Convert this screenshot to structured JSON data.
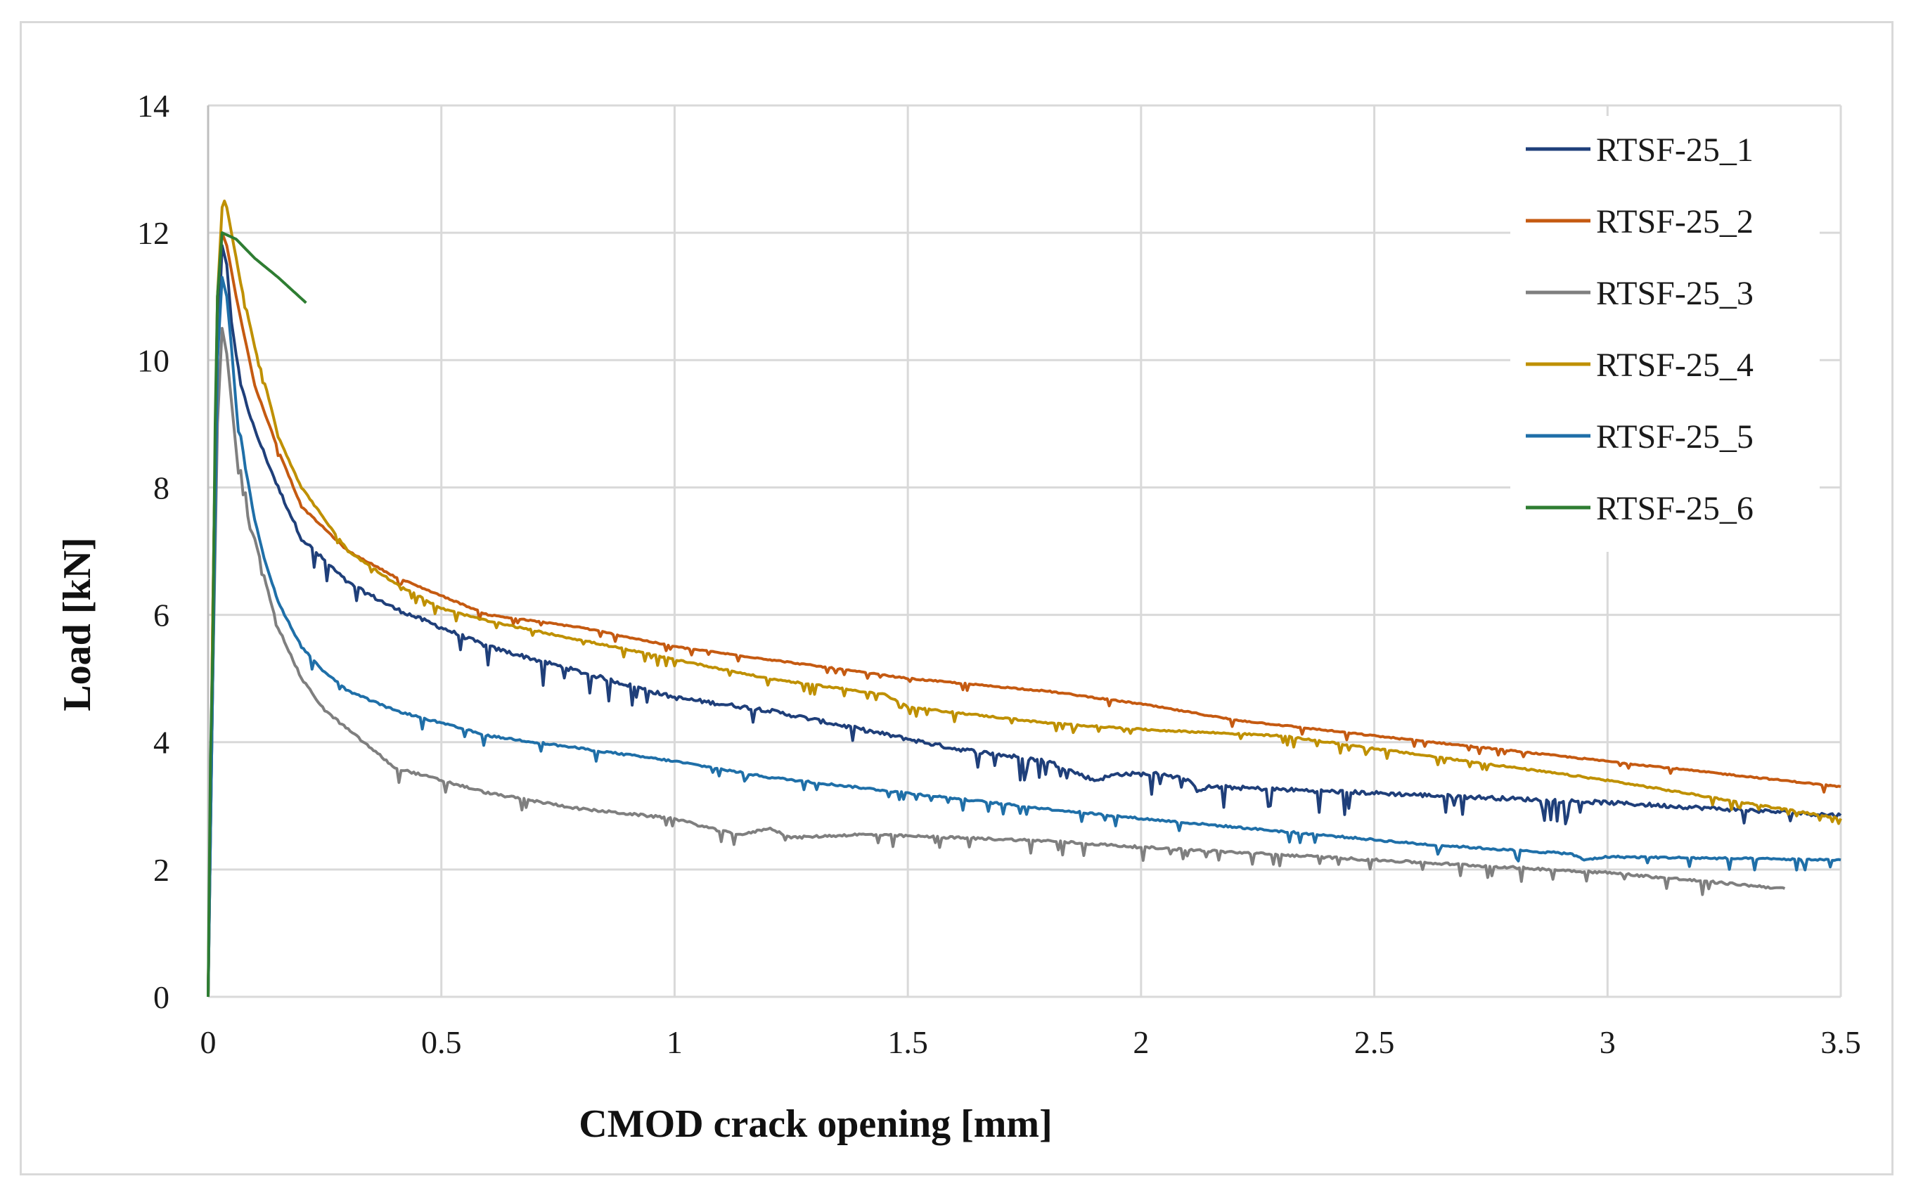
{
  "chart_data": {
    "type": "line",
    "title": "",
    "xlabel": "CMOD crack opening [mm]",
    "ylabel": "Load [kN]",
    "xlim": [
      0,
      3.5
    ],
    "ylim": [
      0,
      14
    ],
    "xticks": [
      0,
      0.5,
      1,
      1.5,
      2,
      2.5,
      3,
      3.5
    ],
    "yticks": [
      0,
      2,
      4,
      6,
      8,
      10,
      12,
      14
    ],
    "xtick_labels": [
      "0",
      "0.5",
      "1",
      "1.5",
      "2",
      "2.5",
      "3",
      "3.5"
    ],
    "ytick_labels": [
      "0",
      "2",
      "4",
      "6",
      "8",
      "10",
      "12",
      "14"
    ],
    "grid": true,
    "legend_position": "top-right",
    "series": [
      {
        "name": "RTSF-25_1",
        "color": "#1f3f7a",
        "noise": 0.25,
        "x": [
          0,
          0.01,
          0.02,
          0.03,
          0.04,
          0.05,
          0.07,
          0.1,
          0.15,
          0.2,
          0.3,
          0.4,
          0.5,
          0.6,
          0.8,
          1.0,
          1.2,
          1.4,
          1.6,
          1.8,
          1.9,
          1.95,
          2.0,
          2.05,
          2.1,
          2.12,
          2.15,
          2.5,
          3.0,
          3.5
        ],
        "y": [
          0,
          5,
          10,
          11.8,
          11.5,
          10.6,
          9.6,
          8.9,
          8.0,
          7.2,
          6.5,
          6.1,
          5.8,
          5.5,
          5.1,
          4.7,
          4.5,
          4.2,
          3.9,
          3.7,
          3.4,
          3.5,
          3.5,
          3.5,
          3.4,
          3.25,
          3.3,
          3.2,
          3.05,
          2.85
        ]
      },
      {
        "name": "RTSF-25_2",
        "color": "#c55a11",
        "noise": 0.08,
        "x": [
          0,
          0.01,
          0.02,
          0.03,
          0.04,
          0.06,
          0.1,
          0.15,
          0.2,
          0.3,
          0.4,
          0.5,
          0.6,
          0.8,
          1.0,
          1.2,
          1.5,
          1.8,
          2.0,
          2.2,
          2.5,
          3.0,
          3.5
        ],
        "y": [
          0,
          6,
          11,
          12.0,
          11.8,
          11.0,
          9.6,
          8.6,
          7.7,
          7.0,
          6.6,
          6.3,
          6.0,
          5.8,
          5.5,
          5.3,
          5.0,
          4.8,
          4.6,
          4.35,
          4.1,
          3.7,
          3.3
        ]
      },
      {
        "name": "RTSF-25_3",
        "color": "#7f7f7f",
        "noise": 0.15,
        "x": [
          0,
          0.01,
          0.02,
          0.03,
          0.04,
          0.06,
          0.08,
          0.1,
          0.12,
          0.15,
          0.2,
          0.25,
          0.3,
          0.35,
          0.4,
          0.5,
          0.6,
          0.8,
          1.0,
          1.1,
          1.15,
          1.2,
          1.22,
          1.25,
          1.4,
          1.6,
          1.8,
          2.0,
          2.5,
          3.0,
          3.38
        ],
        "y": [
          0,
          5,
          9,
          10.5,
          10.1,
          8.6,
          7.9,
          7.2,
          6.6,
          5.8,
          5.0,
          4.5,
          4.2,
          3.9,
          3.6,
          3.4,
          3.2,
          2.95,
          2.8,
          2.6,
          2.55,
          2.65,
          2.6,
          2.5,
          2.55,
          2.5,
          2.45,
          2.35,
          2.15,
          1.95,
          1.7
        ]
      },
      {
        "name": "RTSF-25_4",
        "color": "#bf9000",
        "noise": 0.1,
        "x": [
          0,
          0.01,
          0.02,
          0.03,
          0.035,
          0.04,
          0.05,
          0.07,
          0.1,
          0.13,
          0.15,
          0.2,
          0.3,
          0.4,
          0.5,
          0.6,
          0.8,
          1.0,
          1.2,
          1.45,
          1.5,
          1.8,
          2.0,
          2.3,
          2.6,
          3.0,
          3.5
        ],
        "y": [
          0,
          6,
          11,
          12.4,
          12.5,
          12.4,
          12.0,
          11.2,
          10.2,
          9.4,
          8.8,
          8.0,
          7.0,
          6.5,
          6.1,
          5.9,
          5.6,
          5.3,
          5.0,
          4.75,
          4.55,
          4.3,
          4.2,
          4.1,
          3.8,
          3.4,
          2.8
        ]
      },
      {
        "name": "RTSF-25_5",
        "color": "#1f6fa8",
        "noise": 0.12,
        "x": [
          0,
          0.01,
          0.02,
          0.03,
          0.04,
          0.05,
          0.06,
          0.08,
          0.1,
          0.12,
          0.15,
          0.2,
          0.25,
          0.3,
          0.4,
          0.5,
          0.6,
          0.8,
          1.0,
          1.2,
          1.5,
          1.8,
          2.0,
          2.3,
          2.6,
          2.8,
          2.92,
          2.95,
          3.0,
          3.5
        ],
        "y": [
          0,
          5,
          10,
          11.3,
          11.0,
          10.2,
          9.3,
          8.3,
          7.5,
          6.9,
          6.2,
          5.5,
          5.1,
          4.8,
          4.5,
          4.3,
          4.1,
          3.9,
          3.7,
          3.45,
          3.2,
          2.95,
          2.8,
          2.6,
          2.4,
          2.3,
          2.25,
          2.15,
          2.2,
          2.15
        ]
      },
      {
        "name": "RTSF-25_6",
        "color": "#2e7d32",
        "noise": 0,
        "x": [
          0,
          0.005,
          0.01,
          0.015,
          0.02,
          0.03,
          0.06,
          0.1,
          0.15,
          0.21
        ],
        "y": [
          0,
          3.7,
          5.5,
          9.0,
          11.0,
          12.0,
          11.9,
          11.6,
          11.3,
          10.9
        ]
      }
    ]
  }
}
